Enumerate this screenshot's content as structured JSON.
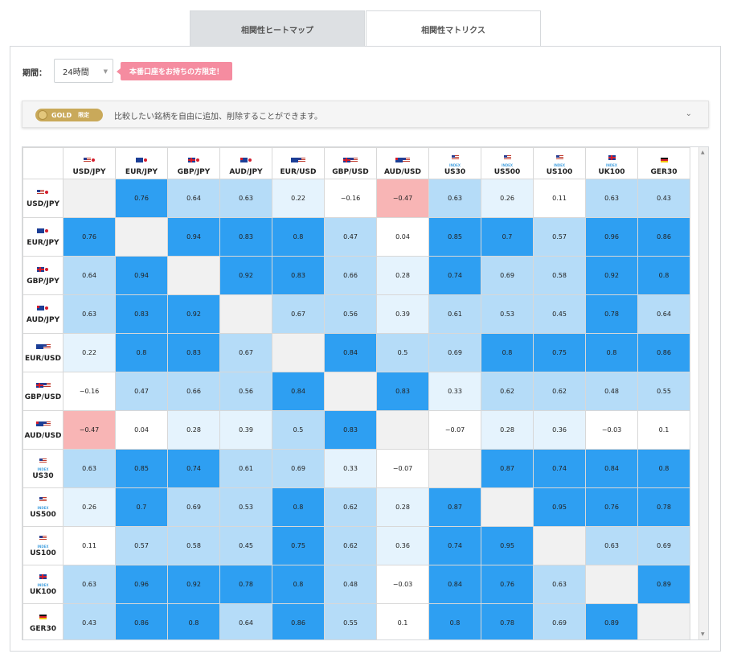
{
  "tabs": [
    {
      "label": "相関性ヒートマップ",
      "active": false
    },
    {
      "label": "相関性マトリクス",
      "active": true
    }
  ],
  "period": {
    "label": "期間：",
    "value": "24時間"
  },
  "promo": {
    "text": "本番口座をお持ちの方限定！"
  },
  "gold": {
    "badge": "GOLD",
    "tag": "限定",
    "text": "比較したい銘柄を自由に追加、削除することができます。"
  },
  "colors": {
    "strong": "#2e9ff2",
    "medium": "#b5dcf8",
    "light": "#e5f3fd",
    "negative": "#f8b5b5",
    "diagonal": "#f1f1f1"
  },
  "symbols": [
    {
      "name": "USD/JPY",
      "flags": [
        "us",
        "jp"
      ]
    },
    {
      "name": "EUR/JPY",
      "flags": [
        "eu",
        "jp"
      ]
    },
    {
      "name": "GBP/JPY",
      "flags": [
        "gb",
        "jp"
      ]
    },
    {
      "name": "AUD/JPY",
      "flags": [
        "au",
        "jp"
      ]
    },
    {
      "name": "EUR/USD",
      "flags": [
        "eu",
        "us"
      ]
    },
    {
      "name": "GBP/USD",
      "flags": [
        "gb",
        "us"
      ]
    },
    {
      "name": "AUD/USD",
      "flags": [
        "au",
        "us"
      ]
    },
    {
      "name": "US30",
      "flags": [
        "us"
      ],
      "index": true
    },
    {
      "name": "US500",
      "flags": [
        "us"
      ],
      "index": true
    },
    {
      "name": "US100",
      "flags": [
        "us"
      ],
      "index": true
    },
    {
      "name": "UK100",
      "flags": [
        "gb"
      ],
      "index": true
    },
    {
      "name": "GER30",
      "flags": [
        "de"
      ]
    }
  ],
  "index_tag": "INDEX",
  "matrix": [
    [
      null,
      "0.76",
      "0.64",
      "0.63",
      "0.22",
      "−0.16",
      "−0.47",
      "0.63",
      "0.26",
      "0.11",
      "0.63",
      "0.43"
    ],
    [
      "0.76",
      null,
      "0.94",
      "0.83",
      "0.8",
      "0.47",
      "0.04",
      "0.85",
      "0.7",
      "0.57",
      "0.96",
      "0.86"
    ],
    [
      "0.64",
      "0.94",
      null,
      "0.92",
      "0.83",
      "0.66",
      "0.28",
      "0.74",
      "0.69",
      "0.58",
      "0.92",
      "0.8"
    ],
    [
      "0.63",
      "0.83",
      "0.92",
      null,
      "0.67",
      "0.56",
      "0.39",
      "0.61",
      "0.53",
      "0.45",
      "0.78",
      "0.64"
    ],
    [
      "0.22",
      "0.8",
      "0.83",
      "0.67",
      null,
      "0.84",
      "0.5",
      "0.69",
      "0.8",
      "0.75",
      "0.8",
      "0.86"
    ],
    [
      "−0.16",
      "0.47",
      "0.66",
      "0.56",
      "0.84",
      null,
      "0.83",
      "0.33",
      "0.62",
      "0.62",
      "0.48",
      "0.55"
    ],
    [
      "−0.47",
      "0.04",
      "0.28",
      "0.39",
      "0.5",
      "0.83",
      null,
      "−0.07",
      "0.28",
      "0.36",
      "−0.03",
      "0.1"
    ],
    [
      "0.63",
      "0.85",
      "0.74",
      "0.61",
      "0.69",
      "0.33",
      "−0.07",
      null,
      "0.87",
      "0.74",
      "0.84",
      "0.8"
    ],
    [
      "0.26",
      "0.7",
      "0.69",
      "0.53",
      "0.8",
      "0.62",
      "0.28",
      "0.87",
      null,
      "0.95",
      "0.76",
      "0.78"
    ],
    [
      "0.11",
      "0.57",
      "0.58",
      "0.45",
      "0.75",
      "0.62",
      "0.36",
      "0.74",
      "0.95",
      null,
      "0.63",
      "0.69"
    ],
    [
      "0.63",
      "0.96",
      "0.92",
      "0.78",
      "0.8",
      "0.48",
      "−0.03",
      "0.84",
      "0.76",
      "0.63",
      null,
      "0.89"
    ],
    [
      "0.43",
      "0.86",
      "0.8",
      "0.64",
      "0.86",
      "0.55",
      "0.1",
      "0.8",
      "0.78",
      "0.69",
      "0.89",
      null
    ]
  ],
  "levels": [
    [
      null,
      "s",
      "m",
      "m",
      "l",
      "w",
      "n",
      "m",
      "l",
      "w",
      "m",
      "m"
    ],
    [
      "s",
      null,
      "s",
      "s",
      "s",
      "m",
      "w",
      "s",
      "s",
      "m",
      "s",
      "s"
    ],
    [
      "m",
      "s",
      null,
      "s",
      "s",
      "m",
      "l",
      "s",
      "m",
      "m",
      "s",
      "s"
    ],
    [
      "m",
      "s",
      "s",
      null,
      "m",
      "m",
      "l",
      "m",
      "m",
      "m",
      "s",
      "m"
    ],
    [
      "l",
      "s",
      "s",
      "m",
      null,
      "s",
      "m",
      "m",
      "s",
      "s",
      "s",
      "s"
    ],
    [
      "w",
      "m",
      "m",
      "m",
      "s",
      null,
      "s",
      "l",
      "m",
      "m",
      "m",
      "m"
    ],
    [
      "n",
      "w",
      "l",
      "l",
      "m",
      "s",
      null,
      "w",
      "l",
      "l",
      "w",
      "w"
    ],
    [
      "m",
      "s",
      "s",
      "m",
      "m",
      "l",
      "w",
      null,
      "s",
      "s",
      "s",
      "s"
    ],
    [
      "l",
      "s",
      "m",
      "m",
      "s",
      "m",
      "l",
      "s",
      null,
      "s",
      "s",
      "s"
    ],
    [
      "w",
      "m",
      "m",
      "m",
      "s",
      "m",
      "l",
      "s",
      "s",
      null,
      "m",
      "m"
    ],
    [
      "m",
      "s",
      "s",
      "s",
      "s",
      "m",
      "w",
      "s",
      "s",
      "m",
      null,
      "s"
    ],
    [
      "m",
      "s",
      "s",
      "m",
      "s",
      "m",
      "w",
      "s",
      "s",
      "m",
      "s",
      null
    ]
  ]
}
